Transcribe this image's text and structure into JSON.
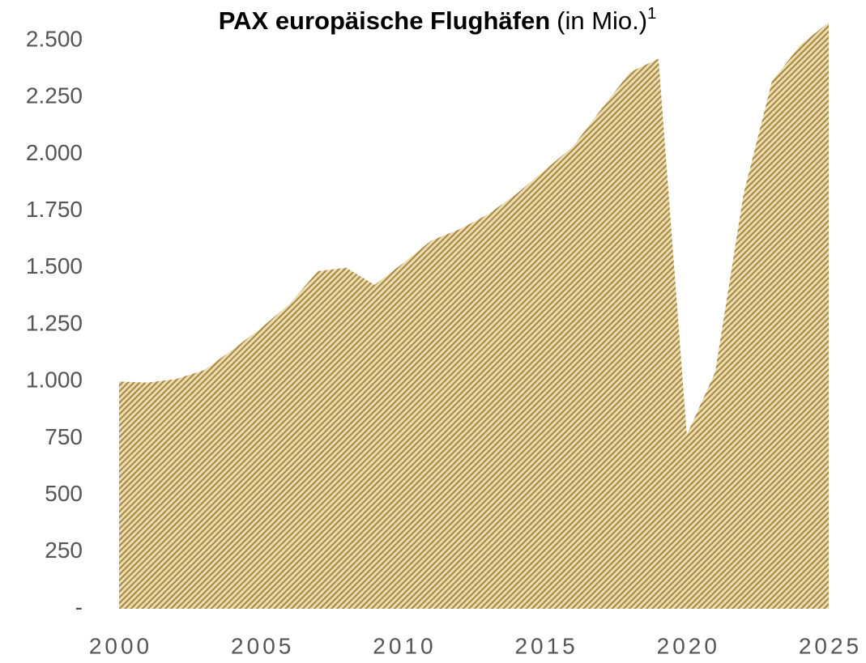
{
  "chart_data": {
    "type": "area",
    "title": "PAX europäische Flughäfen",
    "title_suffix": "(in Mio.)",
    "title_note": "1",
    "x": [
      2000,
      2001,
      2002,
      2003,
      2004,
      2005,
      2006,
      2007,
      2008,
      2009,
      2010,
      2011,
      2012,
      2013,
      2014,
      2015,
      2016,
      2017,
      2018,
      2019,
      2020,
      2021,
      2022,
      2023,
      2024,
      2025
    ],
    "values": [
      1000,
      995,
      1010,
      1050,
      1140,
      1235,
      1340,
      1485,
      1500,
      1425,
      1520,
      1620,
      1670,
      1735,
      1825,
      1930,
      2035,
      2200,
      2360,
      2420,
      765,
      1040,
      1825,
      2320,
      2480,
      2580
    ],
    "color": "#a8863a",
    "xlim": [
      2000,
      2025
    ],
    "xticks": [
      2000,
      2005,
      2010,
      2015,
      2020,
      2025
    ],
    "ylim": [
      0,
      2500
    ],
    "yticks": [
      {
        "value": 0,
        "label": "-"
      },
      250,
      500,
      750,
      {
        "value": 1000,
        "label": "1.000"
      },
      {
        "value": 1250,
        "label": "1.250"
      },
      {
        "value": 1500,
        "label": "1.500"
      },
      {
        "value": 1750,
        "label": "1.750"
      },
      {
        "value": 2000,
        "label": "2.000"
      },
      {
        "value": 2250,
        "label": "2.250"
      },
      {
        "value": 2500,
        "label": "2.500"
      }
    ],
    "grid": false
  }
}
